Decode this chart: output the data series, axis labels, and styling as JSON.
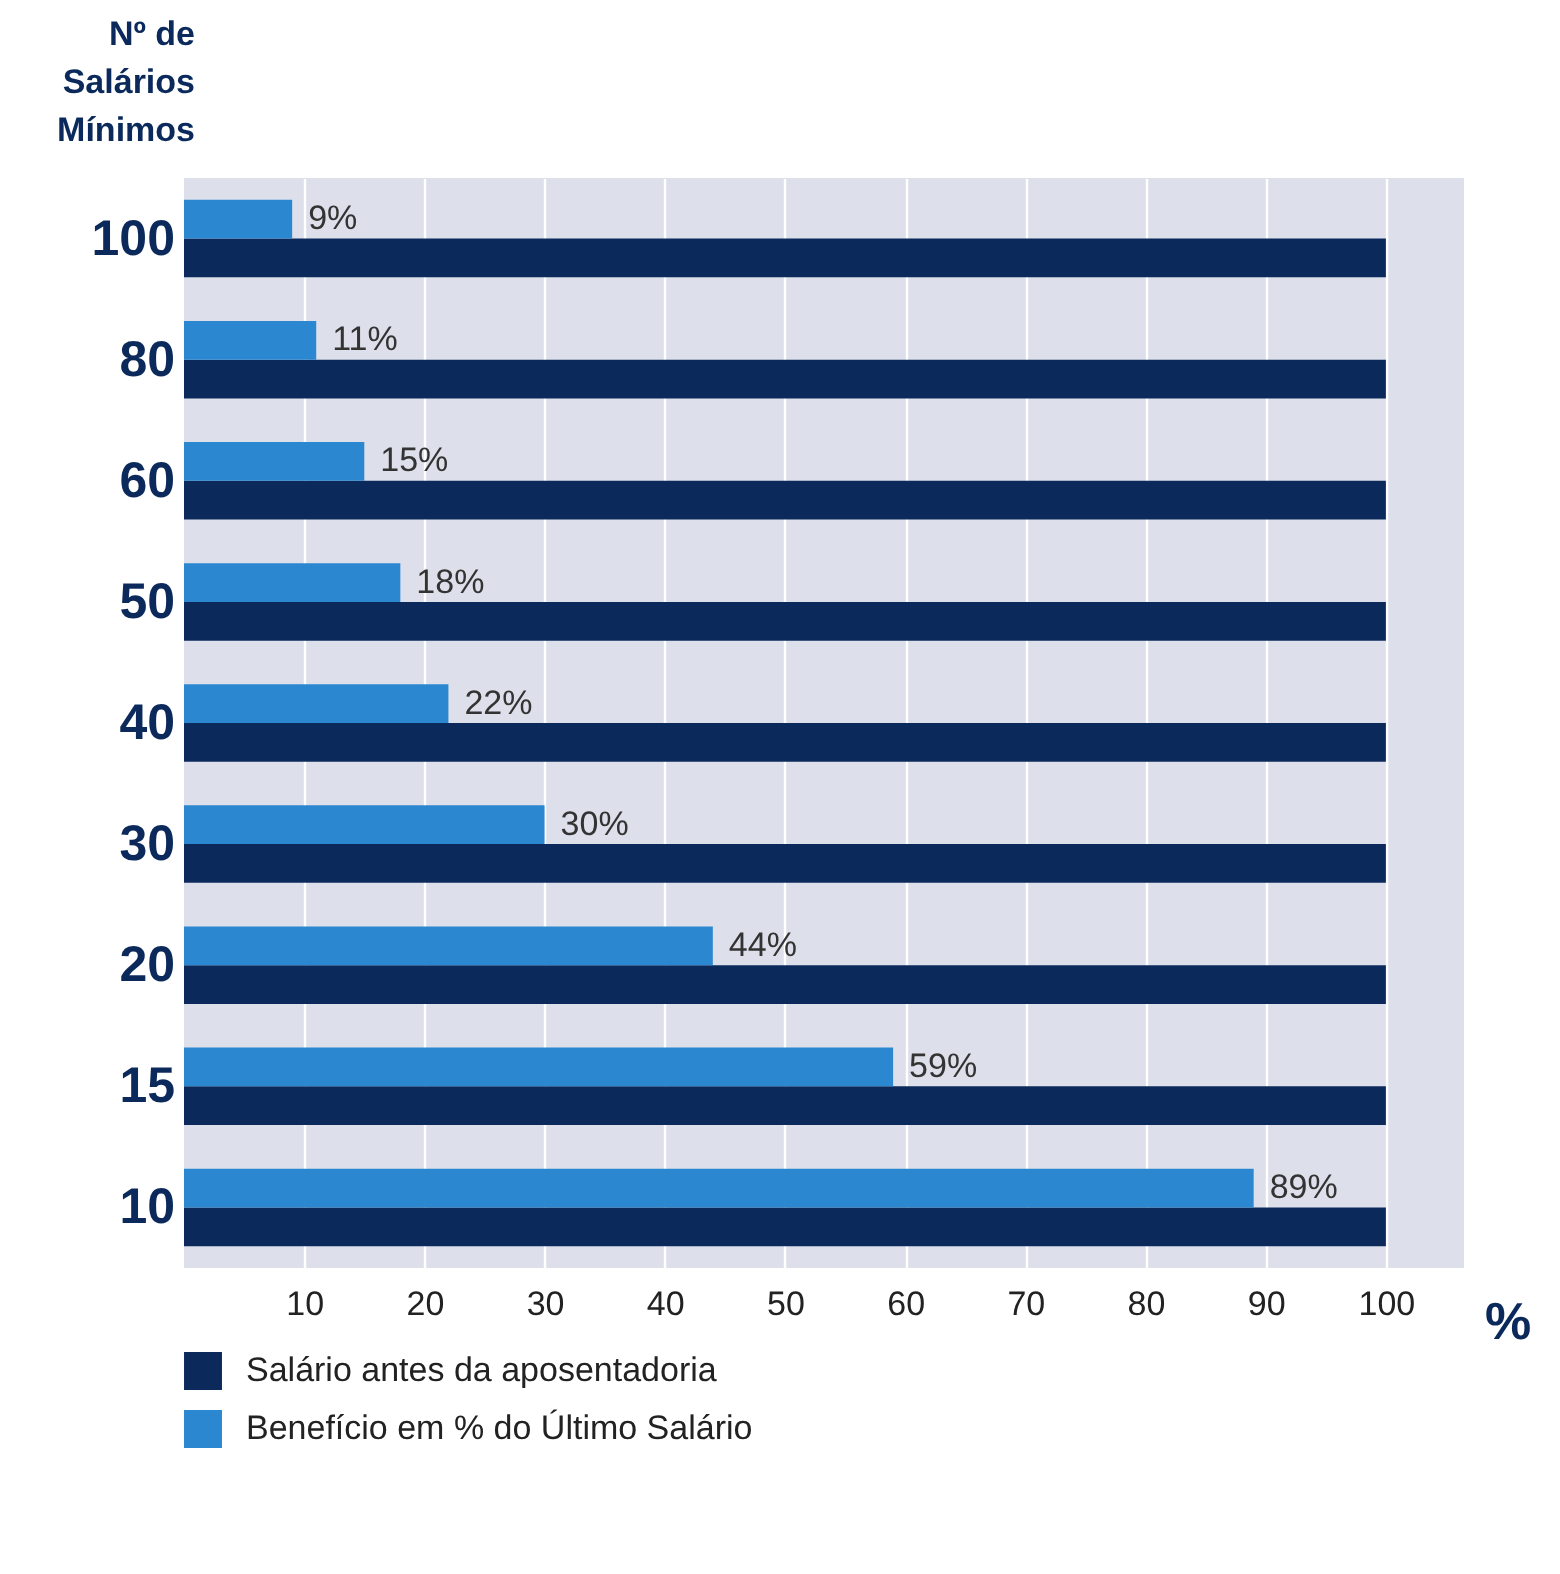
{
  "chart_data": {
    "type": "bar",
    "orientation": "horizontal",
    "ylabel": "Nº de\nSalários\nMínimos",
    "xlabel": "%",
    "categories": [
      "100",
      "80",
      "60",
      "50",
      "40",
      "30",
      "20",
      "15",
      "10"
    ],
    "series": [
      {
        "name": "Salário antes da aposentadoria",
        "color": "#0b2a5b",
        "values": [
          100,
          100,
          100,
          100,
          100,
          100,
          100,
          100,
          100
        ]
      },
      {
        "name": "Benefício em % do Último Salário",
        "color": "#2a87d0",
        "values": [
          9,
          11,
          15,
          18,
          22,
          30,
          44,
          59,
          89
        ],
        "value_labels": [
          "9%",
          "11%",
          "15%",
          "18%",
          "22%",
          "30%",
          "44%",
          "59%",
          "89%"
        ]
      }
    ],
    "xlim": [
      0,
      106.5
    ],
    "xticks": [
      10,
      20,
      30,
      40,
      50,
      60,
      70,
      80,
      90,
      100
    ],
    "grid": "x",
    "legend": "bottom"
  }
}
